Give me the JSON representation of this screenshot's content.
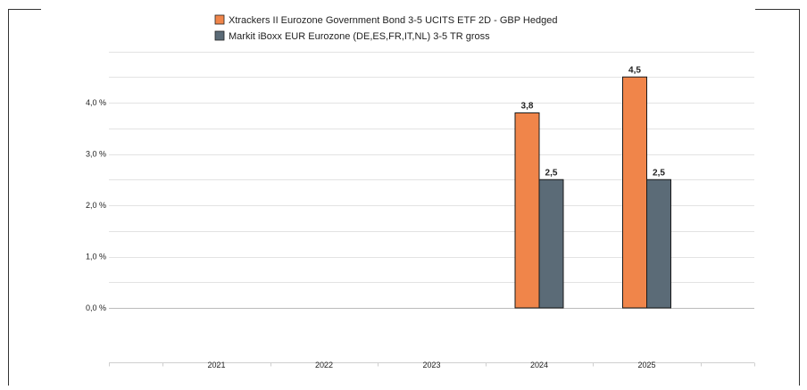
{
  "chart_data": {
    "type": "bar",
    "title": "",
    "xlabel": "",
    "ylabel": "",
    "categories": [
      "2021",
      "2022",
      "2023",
      "2024",
      "2025"
    ],
    "series": [
      {
        "name": "Xtrackers II Eurozone Government Bond 3-5 UCITS ETF 2D - GBP Hedged",
        "color": "#f0854a",
        "values": [
          null,
          null,
          null,
          3.8,
          4.5
        ],
        "labels": [
          "",
          "",
          "",
          "3,8",
          "4,5"
        ]
      },
      {
        "name": "Markit iBoxx EUR Eurozone (DE,ES,FR,IT,NL) 3-5 TR gross",
        "color": "#5b6b77",
        "values": [
          null,
          null,
          null,
          2.5,
          2.5
        ],
        "labels": [
          "",
          "",
          "",
          "2,5",
          "2,5"
        ]
      }
    ],
    "ylim": [
      -1,
      5
    ],
    "yticks": [
      0,
      1,
      2,
      3,
      4
    ],
    "ytick_labels": [
      "0,0 %",
      "1,0 %",
      "2,0 %",
      "3,0 %",
      "4,0 %"
    ],
    "grid": true,
    "legend": "top-center"
  }
}
